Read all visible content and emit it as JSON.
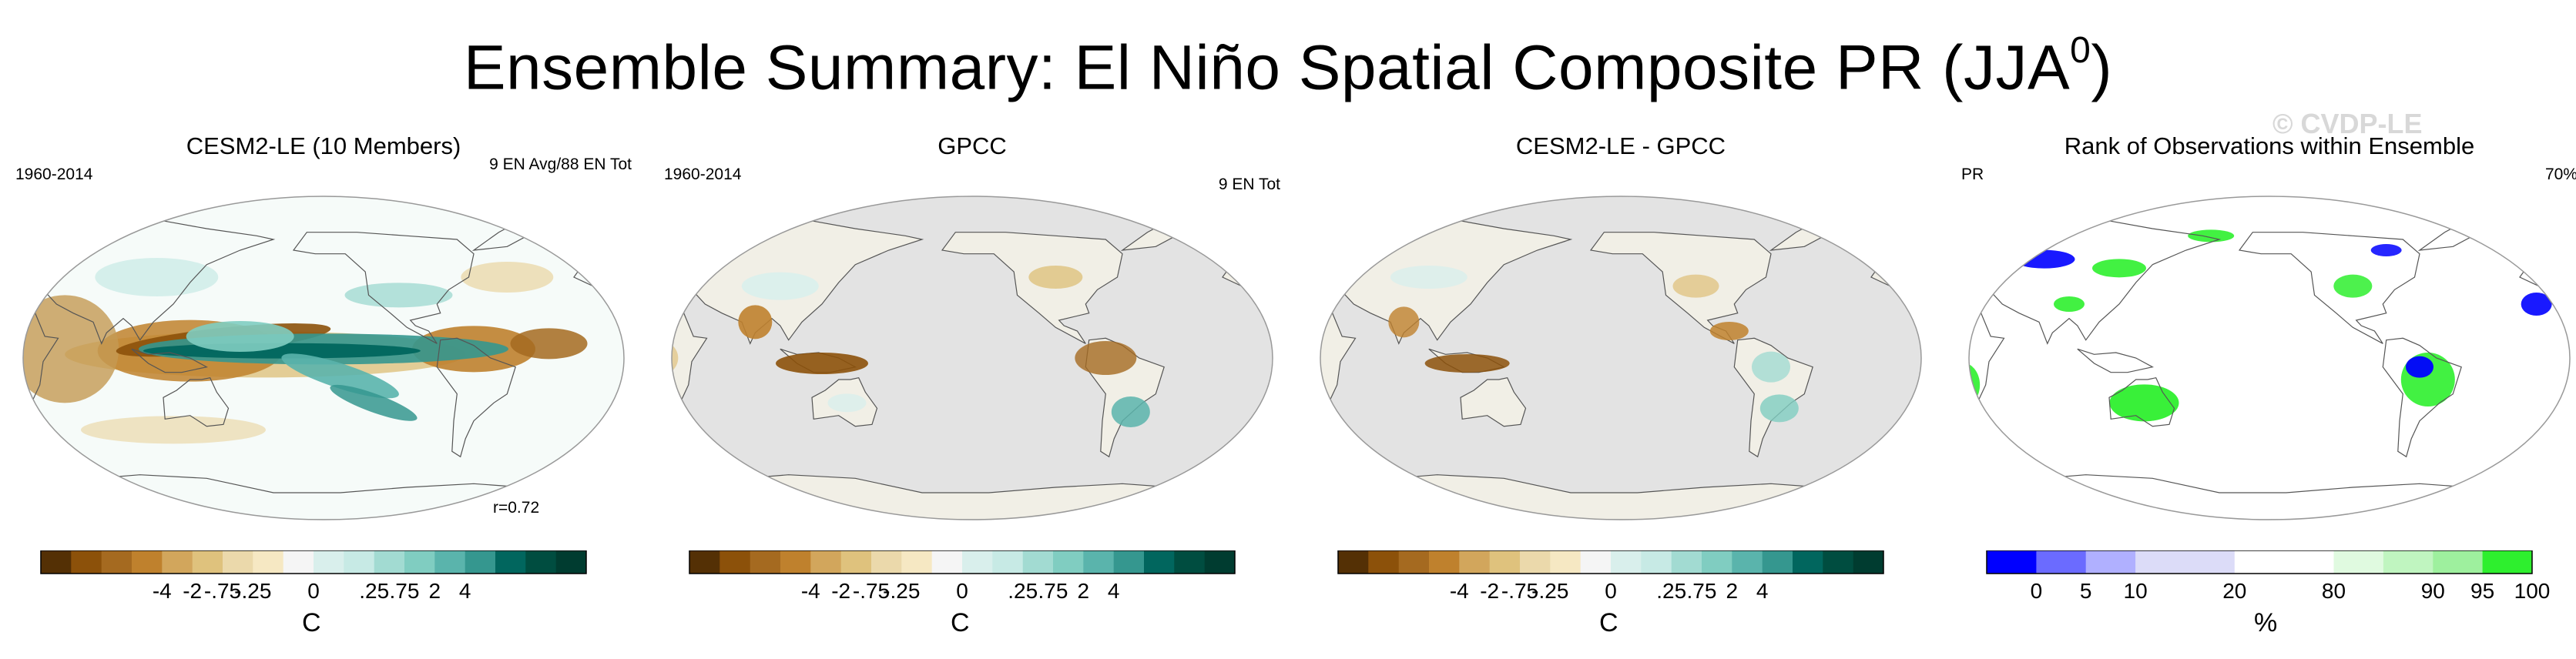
{
  "title_prefix": "Ensemble Summary: El Niño Spatial Composite PR (JJA",
  "title_sup": "0",
  "title_suffix": ")",
  "watermark": "© CVDP-LE",
  "panels": [
    {
      "title": "CESM2-LE (10 Members)",
      "title_color": "#1f7a8c",
      "left_label": "1960-2014",
      "right_label": "9 EN Avg/88 EN Tot",
      "corr_label": "r=0.72",
      "ocean_color": "#f6fbf9",
      "colorbar": {
        "colors": [
          "#543005",
          "#8c510a",
          "#a56a20",
          "#bf812d",
          "#d2a65c",
          "#dfc27d",
          "#ebd9ab",
          "#f6e8c3",
          "#f5f5f5",
          "#d9efec",
          "#c7eae5",
          "#a2dbd2",
          "#80cdc1",
          "#5ab4ac",
          "#35978f",
          "#01665e",
          "#004d40",
          "#003c30"
        ],
        "ticks": [
          "-4",
          "-2",
          "-.75",
          "-.25",
          "0",
          ".25",
          ".75",
          "2",
          "4"
        ],
        "units": "C"
      }
    },
    {
      "title": "GPCC",
      "title_color": "#000000",
      "left_label": "1960-2014",
      "right_label": "9 EN Tot",
      "ocean_color": "#e3e3e3",
      "colorbar": {
        "colors": [
          "#543005",
          "#8c510a",
          "#a56a20",
          "#bf812d",
          "#d2a65c",
          "#dfc27d",
          "#ebd9ab",
          "#f6e8c3",
          "#f5f5f5",
          "#d9efec",
          "#c7eae5",
          "#a2dbd2",
          "#80cdc1",
          "#5ab4ac",
          "#35978f",
          "#01665e",
          "#004d40",
          "#003c30"
        ],
        "ticks": [
          "-4",
          "-2",
          "-.75",
          "-.25",
          "0",
          ".25",
          ".75",
          "2",
          "4"
        ],
        "units": "C"
      }
    },
    {
      "title": "CESM2-LE - GPCC",
      "title_color": "#000000",
      "ocean_color": "#e3e3e3",
      "colorbar": {
        "colors": [
          "#543005",
          "#8c510a",
          "#a56a20",
          "#bf812d",
          "#d2a65c",
          "#dfc27d",
          "#ebd9ab",
          "#f6e8c3",
          "#f5f5f5",
          "#d9efec",
          "#c7eae5",
          "#a2dbd2",
          "#80cdc1",
          "#5ab4ac",
          "#35978f",
          "#01665e",
          "#004d40",
          "#003c30"
        ],
        "ticks": [
          "-4",
          "-2",
          "-.75",
          "-.25",
          "0",
          ".25",
          ".75",
          "2",
          "4"
        ],
        "units": "C"
      }
    },
    {
      "title": "Rank of Observations within Ensemble",
      "title_color": "#000000",
      "left_label": "PR",
      "right_label": "70%",
      "ocean_color": "#ffffff",
      "colorbar": {
        "colors": [
          "#0000ff",
          "#6b6bff",
          "#b0b0ff",
          "#dcdcf8",
          "#dcdcf8",
          "#ffffff",
          "#ffffff",
          "#e0fae0",
          "#c0f5c0",
          "#9ef09e",
          "#2eef2e"
        ],
        "ticks": [
          "0",
          "5",
          "10",
          "20",
          "80",
          "90",
          "95",
          "100"
        ],
        "units": "%"
      }
    }
  ],
  "chart_data": [
    {
      "type": "heatmap",
      "title": "CESM2-LE (10 Members)",
      "subtitle_left": "1960-2014",
      "subtitle_right": "9 EN Avg/88 EN Tot",
      "annotation": "r=0.72",
      "projection": "Robinson, Pacific-centered",
      "colorbar_ticks": [
        -4,
        -2,
        -0.75,
        -0.25,
        0,
        0.25,
        0.75,
        2,
        4
      ],
      "units": "C",
      "features": [
        {
          "region": "Central/eastern equatorial Pacific band",
          "anomaly": "wet",
          "approx_value": 4
        },
        {
          "region": "South Pacific Convergence Zone",
          "anomaly": "wet",
          "approx_value": 2
        },
        {
          "region": "Maritime Continent / western Pacific",
          "anomaly": "dry",
          "approx_value": -4
        },
        {
          "region": "Northern South America / Atlantic ITCZ",
          "anomaly": "dry",
          "approx_value": -2
        },
        {
          "region": "Indian Ocean",
          "anomaly": "dry",
          "approx_value": -0.75
        }
      ]
    },
    {
      "type": "heatmap",
      "title": "GPCC",
      "subtitle_left": "1960-2014",
      "subtitle_right": "9 EN Tot",
      "projection": "Robinson, Pacific-centered",
      "colorbar_ticks": [
        -4,
        -2,
        -0.75,
        -0.25,
        0,
        0.25,
        0.75,
        2,
        4
      ],
      "units": "C",
      "features": [
        {
          "region": "Indonesia / Maritime Continent",
          "anomaly": "dry",
          "approx_value": -2
        },
        {
          "region": "India",
          "anomaly": "dry",
          "approx_value": -0.75
        },
        {
          "region": "Northern South America",
          "anomaly": "dry",
          "approx_value": -0.75
        },
        {
          "region": "Southeastern South America",
          "anomaly": "wet",
          "approx_value": 0.75
        }
      ]
    },
    {
      "type": "heatmap",
      "title": "CESM2-LE - GPCC",
      "projection": "Robinson, Pacific-centered",
      "colorbar_ticks": [
        -4,
        -2,
        -0.75,
        -0.25,
        0,
        0.25,
        0.75,
        2,
        4
      ],
      "units": "C",
      "features": [
        {
          "region": "Indonesia / Maritime Continent",
          "anomaly": "dry",
          "approx_value": -2
        },
        {
          "region": "Central America",
          "anomaly": "dry",
          "approx_value": -0.75
        },
        {
          "region": "Southeastern South America",
          "anomaly": "wet",
          "approx_value": 0.25
        }
      ]
    },
    {
      "type": "heatmap",
      "title": "Rank of Observations within Ensemble",
      "subtitle_left": "PR",
      "subtitle_right": "70%",
      "projection": "Robinson, Pacific-centered",
      "colorbar_ticks": [
        0,
        5,
        10,
        20,
        80,
        90,
        95,
        100
      ],
      "units": "%",
      "features": [
        {
          "region": "Australia",
          "rank": "high",
          "approx_value": 100
        },
        {
          "region": "Brazil",
          "rank": "mixed",
          "approx_value": [
            0,
            100
          ]
        },
        {
          "region": "Southern Africa",
          "rank": "high",
          "approx_value": 100
        },
        {
          "region": "Eurasia",
          "rank": "mixed",
          "approx_value": [
            0,
            100
          ]
        }
      ]
    }
  ]
}
